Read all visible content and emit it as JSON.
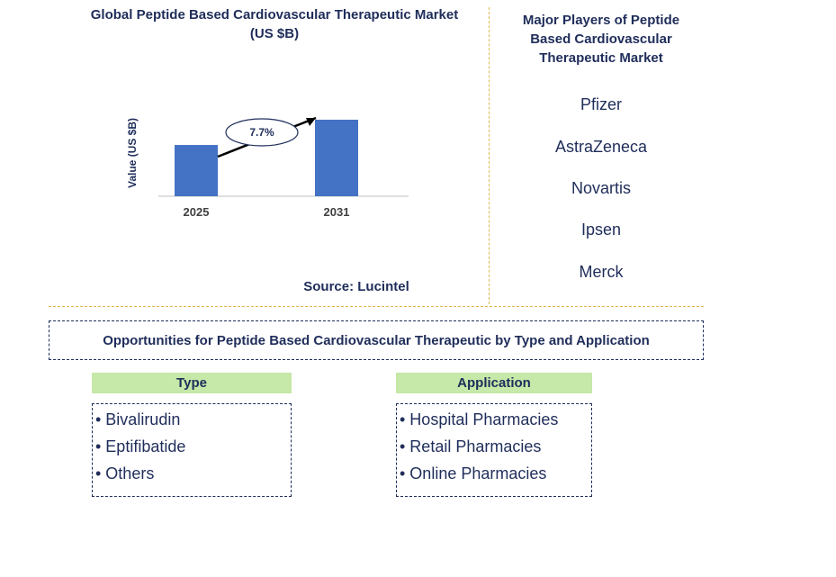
{
  "chart_data": {
    "type": "bar",
    "title": "Global Peptide Based Cardiovascular Therapeutic Market (US $B)",
    "ylabel": "Value (US $B)",
    "categories": [
      "2025",
      "2031"
    ],
    "values": [
      0.67,
      1.0
    ],
    "annotation": "7.7%",
    "bar_color": "#4472c4"
  },
  "source": "Source: Lucintel",
  "players": {
    "title": "Major Players of Peptide Based Cardiovascular Therapeutic Market",
    "items": [
      "Pfizer",
      "AstraZeneca",
      "Novartis",
      "Ipsen",
      "Merck"
    ]
  },
  "opportunities": {
    "title": "Opportunities for Peptide Based Cardiovascular Therapeutic by Type and Application",
    "type": {
      "header": "Type",
      "items": [
        "• Bivalirudin",
        "• Eptifibatide",
        "• Others"
      ]
    },
    "application": {
      "header": "Application",
      "items": [
        "• Hospital Pharmacies",
        "• Retail Pharmacies",
        "• Online Pharmacies"
      ]
    }
  },
  "colors": {
    "text": "#1f2d5a",
    "header_fill": "#c6e8a8",
    "divider": "#e0b84a"
  }
}
